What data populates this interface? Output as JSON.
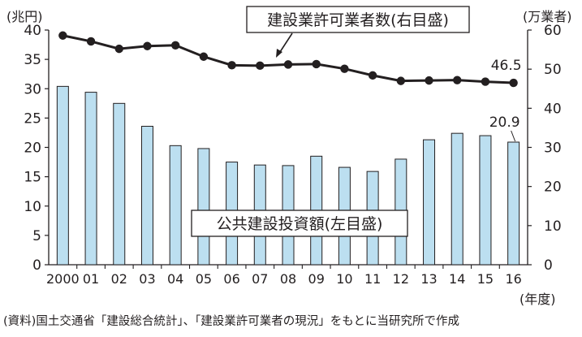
{
  "chart_data": {
    "type": "bar+line",
    "categories": [
      "2000",
      "01",
      "02",
      "03",
      "04",
      "05",
      "06",
      "07",
      "08",
      "09",
      "10",
      "11",
      "12",
      "13",
      "14",
      "15",
      "16"
    ],
    "series": [
      {
        "name": "公共建設投資額(左目盛)",
        "type": "bar",
        "axis": "left",
        "values": [
          30.4,
          29.4,
          27.5,
          23.6,
          20.3,
          19.8,
          17.5,
          17.0,
          16.9,
          18.5,
          16.6,
          15.9,
          18.0,
          21.3,
          22.4,
          22.0,
          20.9
        ]
      },
      {
        "name": "建設業許可業者数(右目盛)",
        "type": "line",
        "axis": "right",
        "values": [
          58.6,
          57.1,
          55.2,
          55.9,
          56.1,
          53.2,
          51.0,
          50.9,
          51.2,
          51.3,
          50.1,
          48.4,
          47.0,
          47.1,
          47.2,
          46.8,
          46.5
        ]
      }
    ],
    "y_left": {
      "label": "(兆円)",
      "ticks": [
        "0",
        "5",
        "10",
        "15",
        "20",
        "25",
        "30",
        "35",
        "40"
      ],
      "ylim": [
        0,
        40
      ]
    },
    "y_right": {
      "label": "(万業者)",
      "ticks": [
        "0",
        "10",
        "20",
        "30",
        "40",
        "50",
        "60"
      ],
      "ylim": [
        0,
        60
      ]
    },
    "xlabel": "(年度)",
    "annotations": [
      "46.5",
      "20.9"
    ],
    "grid": false,
    "colors": {
      "bar_fill": "#bcdff0",
      "bar_stroke": "#231f20",
      "line": "#231f20",
      "axis": "#231f20"
    }
  },
  "source_note": "(資料)国土交通省「建設総合統計」、「建設業許可業者の現況」をもとに当研究所で作成"
}
